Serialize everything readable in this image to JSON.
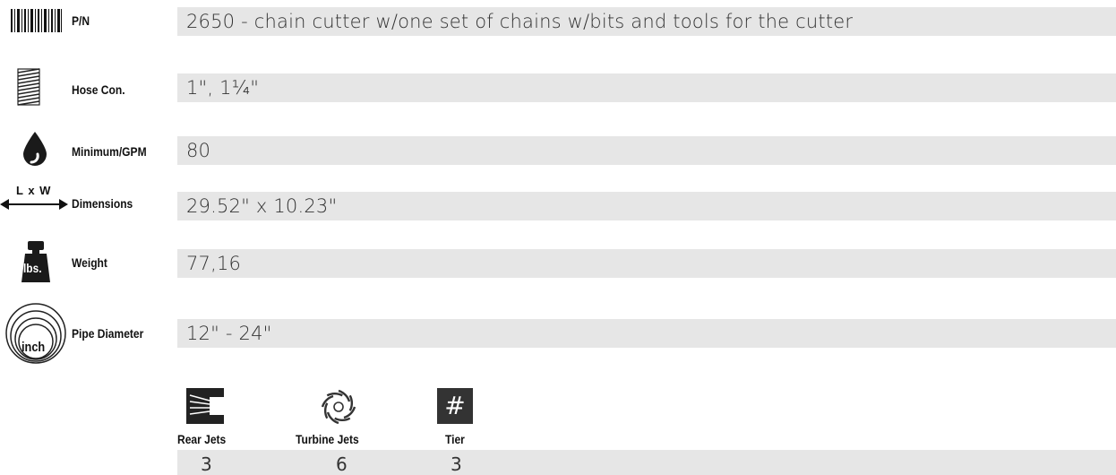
{
  "specs": [
    {
      "icon": "barcode-icon",
      "label": "P/N",
      "value": "2650 - chain cutter w/one set of chains w/bits and tools for the cutter"
    },
    {
      "icon": "hose-thread-icon",
      "label": "Hose Con.",
      "value": "1\", 1¼\""
    },
    {
      "icon": "water-drop-icon",
      "label": "Minimum/GPM",
      "value": "80"
    },
    {
      "icon": "dimensions-arrow-icon",
      "label": "Dimensions",
      "value": "29.52\"  x  10.23\"",
      "icon_text": "L x W"
    },
    {
      "icon": "weight-icon",
      "label": "Weight",
      "value": "77,16",
      "icon_text": "lbs."
    },
    {
      "icon": "pipe-diameter-icon",
      "label": "Pipe Diameter",
      "value": "12\"  -  24\"",
      "icon_text": "inch"
    }
  ],
  "jets": [
    {
      "icon": "rear-jets-icon",
      "label": "Rear Jets",
      "value": "3"
    },
    {
      "icon": "turbine-jets-icon",
      "label": "Turbine Jets",
      "value": "6"
    },
    {
      "icon": "tier-icon",
      "label": "Tier",
      "value": "3",
      "icon_text": "#"
    }
  ]
}
